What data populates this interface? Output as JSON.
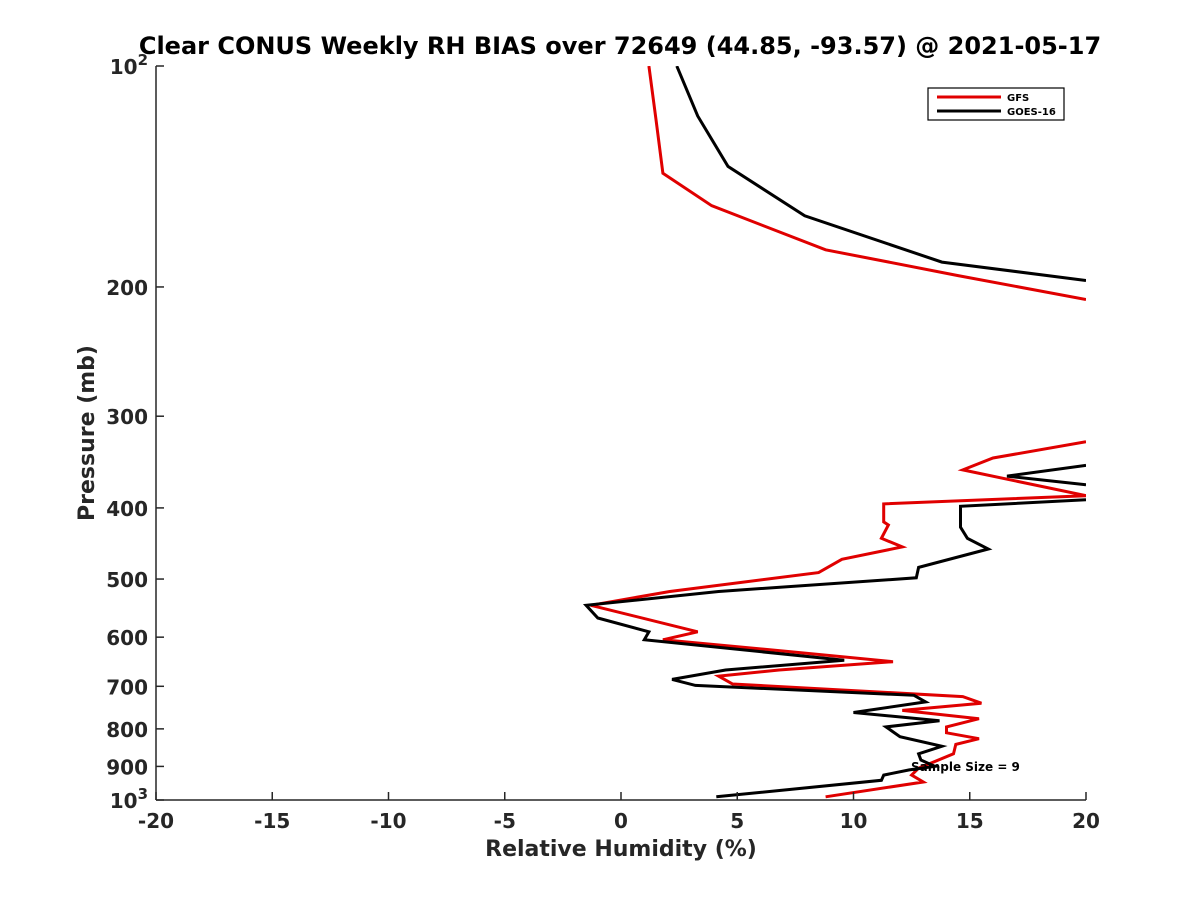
{
  "chart_data": {
    "type": "line",
    "title": "Clear CONUS Weekly RH BIAS over 72649 (44.85, -93.57) @ 2021-05-17",
    "xlabel": "Relative Humidity (%)",
    "ylabel": "Pressure (mb)",
    "xlim": [
      -20,
      20
    ],
    "ylim": [
      100,
      1000
    ],
    "y_scale": "log",
    "y_reversed": true,
    "grid": false,
    "legend_position": "top-right",
    "x_ticks": [
      "-20",
      "-15",
      "-10",
      "-5",
      "0",
      "5",
      "10",
      "15",
      "20"
    ],
    "y_ticks": [
      {
        "value": 100,
        "label": "10",
        "sup": "2"
      },
      {
        "value": 200,
        "label": "200",
        "sup": ""
      },
      {
        "value": 300,
        "label": "300",
        "sup": ""
      },
      {
        "value": 400,
        "label": "400",
        "sup": ""
      },
      {
        "value": 500,
        "label": "500",
        "sup": ""
      },
      {
        "value": 600,
        "label": "600",
        "sup": ""
      },
      {
        "value": 700,
        "label": "700",
        "sup": ""
      },
      {
        "value": 800,
        "label": "800",
        "sup": ""
      },
      {
        "value": 900,
        "label": "900",
        "sup": ""
      },
      {
        "value": 1000,
        "label": "10",
        "sup": "3"
      }
    ],
    "series": [
      {
        "name": "GFS",
        "color": "#e00000",
        "points": [
          [
            1.2,
            100
          ],
          [
            1.5,
            118
          ],
          [
            1.8,
            140
          ],
          [
            3.9,
            155
          ],
          [
            8.8,
            178
          ],
          [
            14.5,
            193
          ],
          [
            20.0,
            208
          ],
          [
            null,
            null
          ],
          [
            20.0,
            325
          ],
          [
            16.0,
            342
          ],
          [
            14.7,
            355
          ],
          [
            20.0,
            385
          ],
          [
            11.3,
            395
          ],
          [
            11.3,
            418
          ],
          [
            11.5,
            422
          ],
          [
            11.2,
            440
          ],
          [
            12.1,
            452
          ],
          [
            9.5,
            470
          ],
          [
            8.5,
            490
          ],
          [
            2.1,
            520
          ],
          [
            -1.3,
            543
          ],
          [
            3.3,
            590
          ],
          [
            1.8,
            605
          ],
          [
            7.3,
            628
          ],
          [
            11.7,
            648
          ],
          [
            6.8,
            665
          ],
          [
            4.2,
            678
          ],
          [
            4.8,
            695
          ],
          [
            14.7,
            723
          ],
          [
            15.5,
            738
          ],
          [
            12.1,
            755
          ],
          [
            15.4,
            775
          ],
          [
            14.0,
            795
          ],
          [
            14.0,
            810
          ],
          [
            15.4,
            825
          ],
          [
            14.4,
            840
          ],
          [
            14.3,
            865
          ],
          [
            12.8,
            905
          ],
          [
            12.5,
            925
          ],
          [
            13.0,
            945
          ],
          [
            8.8,
            990
          ]
        ]
      },
      {
        "name": "GOES-16",
        "color": "#000000",
        "points": [
          [
            2.4,
            100
          ],
          [
            3.3,
            117
          ],
          [
            4.6,
            137
          ],
          [
            7.9,
            160
          ],
          [
            13.8,
            185
          ],
          [
            20.0,
            196
          ],
          [
            null,
            null
          ],
          [
            20.0,
            350
          ],
          [
            16.6,
            362
          ],
          [
            20.0,
            372
          ],
          [
            null,
            null
          ],
          [
            20.0,
            390
          ],
          [
            14.6,
            398
          ],
          [
            14.6,
            425
          ],
          [
            14.9,
            440
          ],
          [
            15.8,
            455
          ],
          [
            12.8,
            482
          ],
          [
            12.7,
            498
          ],
          [
            4.2,
            520
          ],
          [
            -1.5,
            543
          ],
          [
            -1.0,
            565
          ],
          [
            1.2,
            590
          ],
          [
            1.0,
            605
          ],
          [
            9.6,
            645
          ],
          [
            4.5,
            665
          ],
          [
            2.2,
            685
          ],
          [
            3.2,
            698
          ],
          [
            12.6,
            720
          ],
          [
            13.1,
            735
          ],
          [
            10.0,
            760
          ],
          [
            13.7,
            780
          ],
          [
            11.4,
            795
          ],
          [
            12.0,
            820
          ],
          [
            13.8,
            845
          ],
          [
            12.8,
            865
          ],
          [
            12.9,
            882
          ],
          [
            13.5,
            900
          ],
          [
            12.4,
            910
          ],
          [
            11.3,
            925
          ],
          [
            11.2,
            940
          ],
          [
            4.1,
            990
          ]
        ]
      }
    ],
    "annotation": "Sample Size = 9"
  }
}
